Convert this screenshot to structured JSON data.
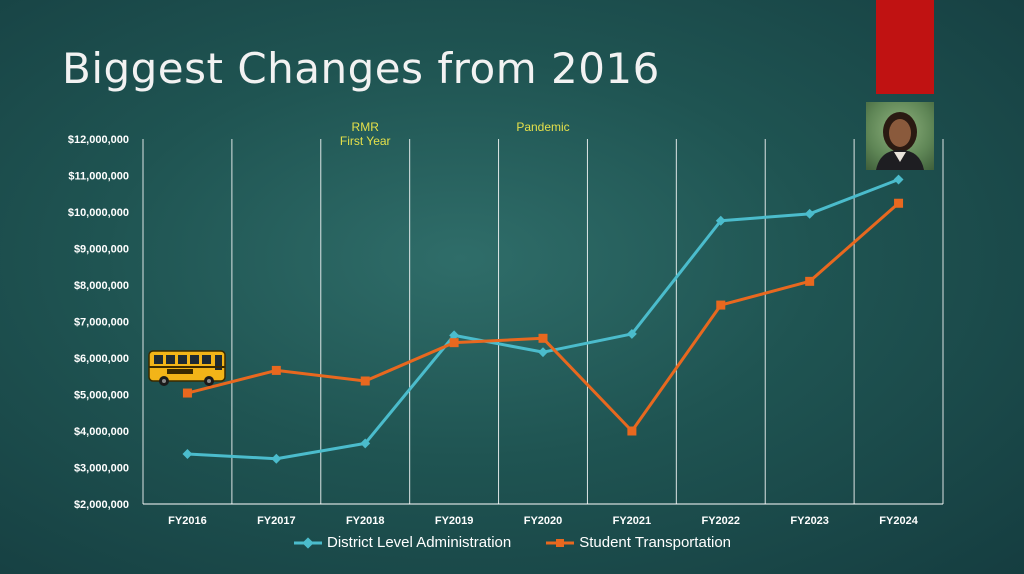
{
  "slide": {
    "title": "Biggest Changes from 2016"
  },
  "colors": {
    "admin": "#4bbccc",
    "transport": "#e8681f",
    "grid": "#ffffff",
    "annotation": "#e5e04a"
  },
  "chart_data": {
    "type": "line",
    "categories": [
      "FY2016",
      "FY2017",
      "FY2018",
      "FY2019",
      "FY2020",
      "FY2021",
      "FY2022",
      "FY2023",
      "FY2024"
    ],
    "series": [
      {
        "name": "District Level Administration",
        "marker": "diamond",
        "values": [
          3370000,
          3240000,
          3660000,
          6620000,
          6160000,
          6660000,
          9760000,
          9950000,
          10890000
        ]
      },
      {
        "name": "Student Transportation",
        "marker": "square",
        "values": [
          5040000,
          5660000,
          5370000,
          6420000,
          6540000,
          4000000,
          7450000,
          8100000,
          10240000
        ]
      }
    ],
    "ylim": [
      2000000,
      12000000
    ],
    "yticks": [
      2000000,
      3000000,
      4000000,
      5000000,
      6000000,
      7000000,
      8000000,
      9000000,
      10000000,
      11000000,
      12000000
    ],
    "ytick_labels": [
      "$2,000,000",
      "$3,000,000",
      "$4,000,000",
      "$5,000,000",
      "$6,000,000",
      "$7,000,000",
      "$8,000,000",
      "$9,000,000",
      "$10,000,000",
      "$11,000,000",
      "$12,000,000"
    ],
    "grid": "vertical",
    "legend": "bottom-center",
    "annotations": [
      {
        "category": "FY2018",
        "lines": [
          "RMR",
          "First Year"
        ]
      },
      {
        "category": "FY2020",
        "lines": [
          "Pandemic"
        ]
      }
    ]
  }
}
